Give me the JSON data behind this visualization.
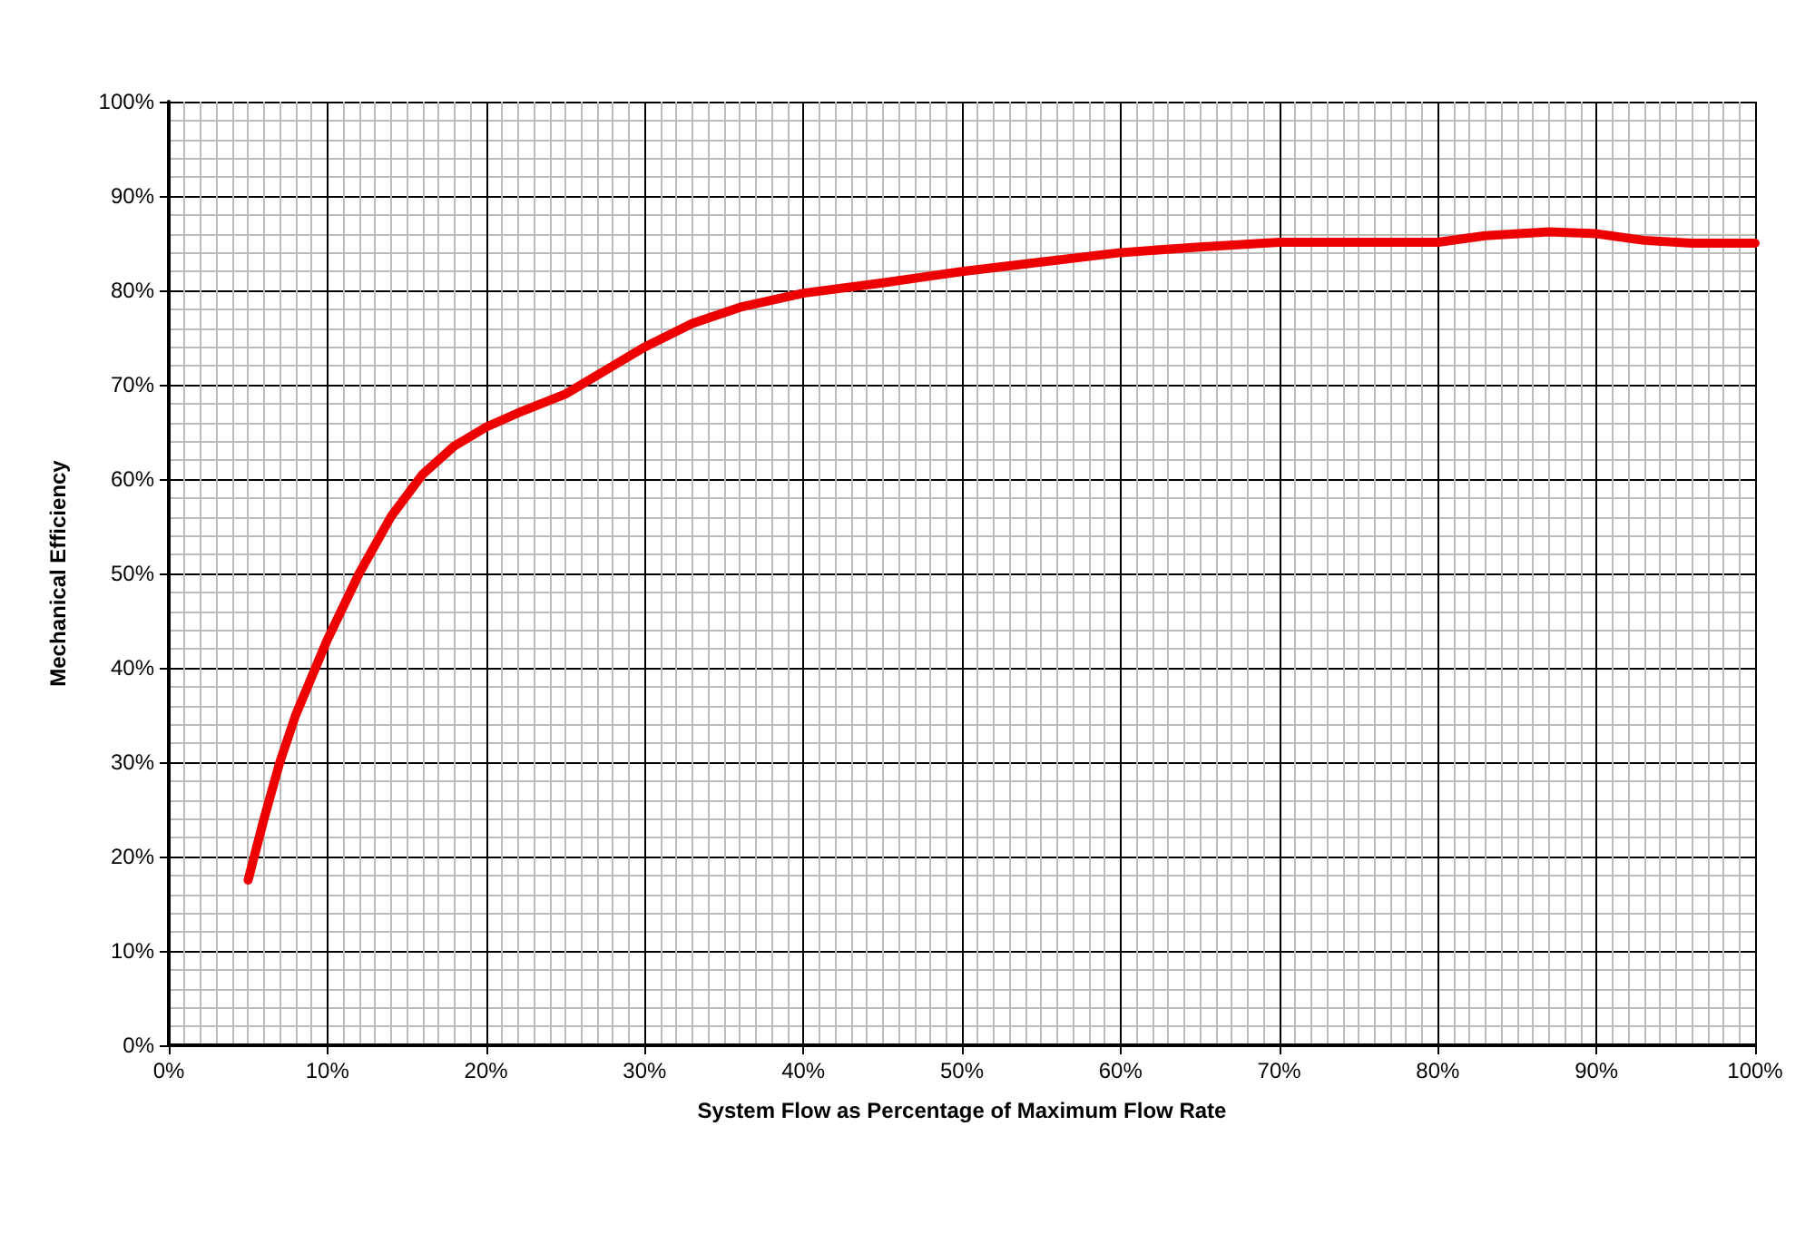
{
  "chart_data": {
    "type": "line",
    "xlabel": "System Flow as Percentage of Maximum Flow Rate",
    "ylabel": "Mechanical Efficiency",
    "x": [
      5,
      6,
      7,
      8,
      10,
      12,
      14,
      16,
      18,
      20,
      22,
      25,
      28,
      30,
      33,
      36,
      40,
      45,
      50,
      55,
      60,
      65,
      70,
      75,
      80,
      83,
      87,
      90,
      93,
      96,
      100
    ],
    "series": [
      {
        "color": "#ee0000",
        "values": [
          17.5,
          24,
          30,
          35,
          43,
          50,
          56,
          60.5,
          63.5,
          65.5,
          67,
          69,
          72,
          74,
          76.5,
          78.2,
          79.7,
          80.8,
          82,
          83,
          84,
          84.6,
          85.1,
          85.1,
          85.1,
          85.8,
          86.2,
          86,
          85.3,
          85,
          85
        ]
      }
    ],
    "xlim": [
      0,
      100
    ],
    "xticks": [
      {
        "value": 0,
        "label": "0%"
      },
      {
        "value": 10,
        "label": "10%"
      },
      {
        "value": 20,
        "label": "20%"
      },
      {
        "value": 30,
        "label": "30%"
      },
      {
        "value": 40,
        "label": "40%"
      },
      {
        "value": 50,
        "label": "50%"
      },
      {
        "value": 60,
        "label": "60%"
      },
      {
        "value": 70,
        "label": "70%"
      },
      {
        "value": 80,
        "label": "80%"
      },
      {
        "value": 90,
        "label": "90%"
      },
      {
        "value": 100,
        "label": "100%"
      }
    ],
    "ylim": [
      0,
      100
    ],
    "yticks": [
      {
        "value": 0,
        "label": "0%"
      },
      {
        "value": 10,
        "label": "10%"
      },
      {
        "value": 20,
        "label": "20%"
      },
      {
        "value": 30,
        "label": "30%"
      },
      {
        "value": 40,
        "label": "40%"
      },
      {
        "value": 50,
        "label": "50%"
      },
      {
        "value": 60,
        "label": "60%"
      },
      {
        "value": 70,
        "label": "70%"
      },
      {
        "value": 80,
        "label": "80%"
      },
      {
        "value": 90,
        "label": "90%"
      },
      {
        "value": 100,
        "label": "100%"
      }
    ],
    "grid": true,
    "marker": "none",
    "line_style": "solid"
  }
}
